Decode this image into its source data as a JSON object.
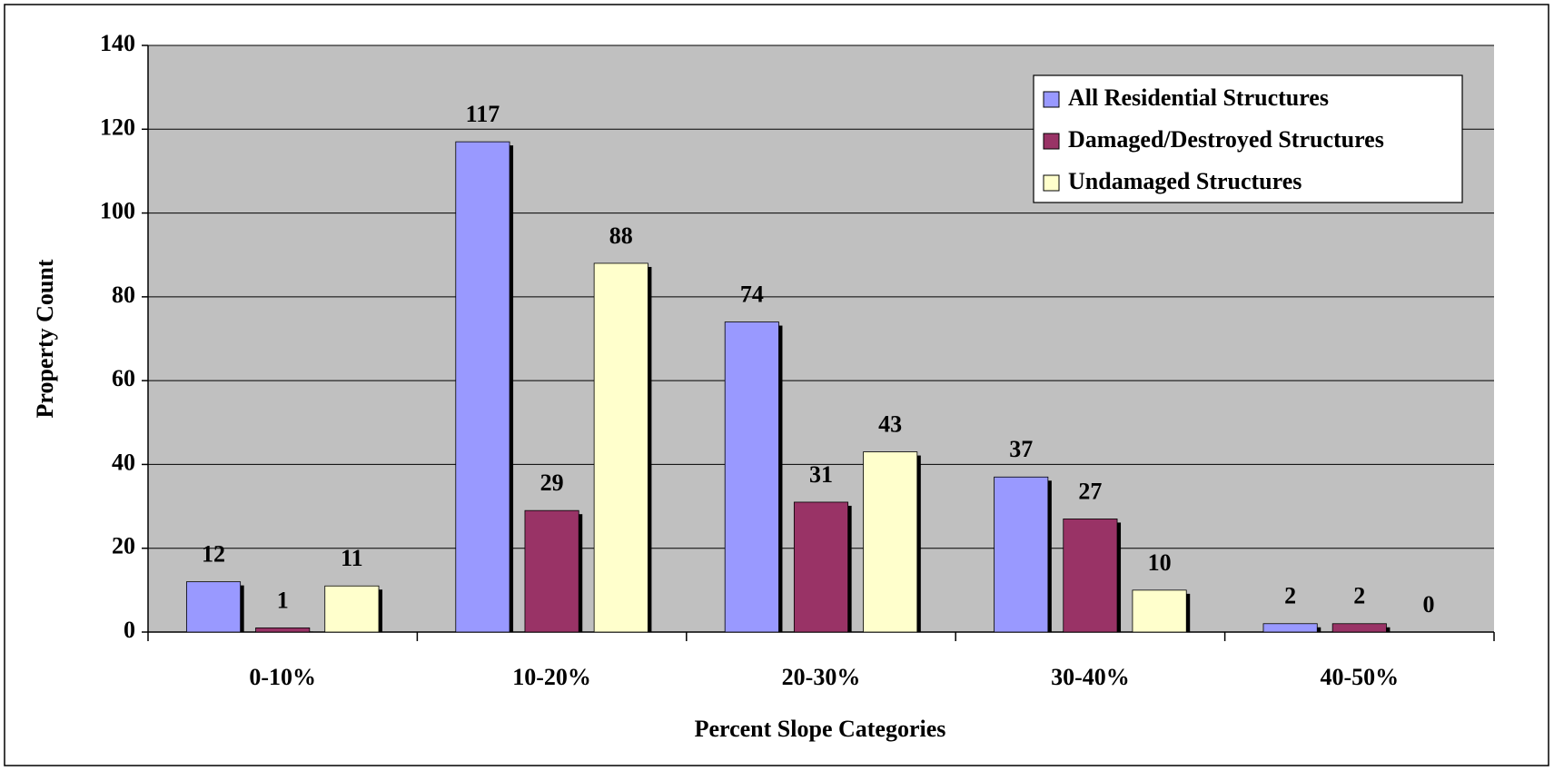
{
  "chart_data": {
    "type": "bar",
    "x_label": "Percent Slope Categories",
    "y_label": "Property Count",
    "categories": [
      "0-10%",
      "10-20%",
      "20-30%",
      "30-40%",
      "40-50%"
    ],
    "series": [
      {
        "name": "All Residential Structures",
        "color": "#9999ff",
        "values": [
          12,
          117,
          74,
          37,
          2
        ]
      },
      {
        "name": "Damaged/Destroyed Structures",
        "color": "#993366",
        "values": [
          1,
          29,
          31,
          27,
          2
        ]
      },
      {
        "name": "Undamaged Structures",
        "color": "#ffffcc",
        "values": [
          11,
          88,
          43,
          10,
          0
        ]
      }
    ],
    "ylim": [
      0,
      140
    ],
    "yticks": [
      0,
      20,
      40,
      60,
      80,
      100,
      120,
      140
    ],
    "grid": true,
    "legend": "top-right",
    "plot_background": "#c0c0c0"
  }
}
